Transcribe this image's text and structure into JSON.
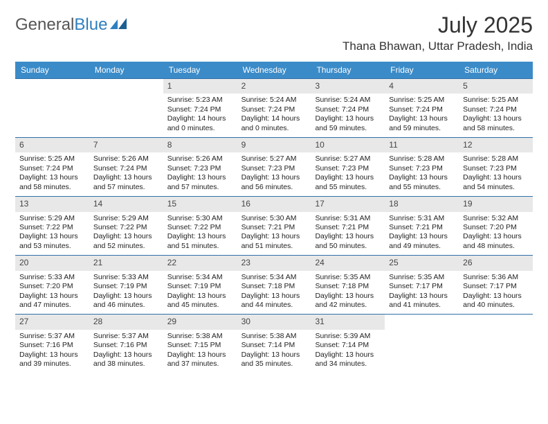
{
  "logo": {
    "part1": "General",
    "part2": "Blue"
  },
  "header": {
    "month_title": "July 2025",
    "location": "Thana Bhawan, Uttar Pradesh, India"
  },
  "colors": {
    "header_bg": "#3b8bc8",
    "week_border": "#2f6fa8",
    "daynum_bg": "#e8e8e8",
    "logo_blue": "#2f7fbf"
  },
  "day_names": [
    "Sunday",
    "Monday",
    "Tuesday",
    "Wednesday",
    "Thursday",
    "Friday",
    "Saturday"
  ],
  "weeks": [
    [
      {
        "n": "",
        "empty": true
      },
      {
        "n": "",
        "empty": true
      },
      {
        "n": "1",
        "sunrise": "Sunrise: 5:23 AM",
        "sunset": "Sunset: 7:24 PM",
        "daylight": "Daylight: 14 hours and 0 minutes."
      },
      {
        "n": "2",
        "sunrise": "Sunrise: 5:24 AM",
        "sunset": "Sunset: 7:24 PM",
        "daylight": "Daylight: 14 hours and 0 minutes."
      },
      {
        "n": "3",
        "sunrise": "Sunrise: 5:24 AM",
        "sunset": "Sunset: 7:24 PM",
        "daylight": "Daylight: 13 hours and 59 minutes."
      },
      {
        "n": "4",
        "sunrise": "Sunrise: 5:25 AM",
        "sunset": "Sunset: 7:24 PM",
        "daylight": "Daylight: 13 hours and 59 minutes."
      },
      {
        "n": "5",
        "sunrise": "Sunrise: 5:25 AM",
        "sunset": "Sunset: 7:24 PM",
        "daylight": "Daylight: 13 hours and 58 minutes."
      }
    ],
    [
      {
        "n": "6",
        "sunrise": "Sunrise: 5:25 AM",
        "sunset": "Sunset: 7:24 PM",
        "daylight": "Daylight: 13 hours and 58 minutes."
      },
      {
        "n": "7",
        "sunrise": "Sunrise: 5:26 AM",
        "sunset": "Sunset: 7:24 PM",
        "daylight": "Daylight: 13 hours and 57 minutes."
      },
      {
        "n": "8",
        "sunrise": "Sunrise: 5:26 AM",
        "sunset": "Sunset: 7:23 PM",
        "daylight": "Daylight: 13 hours and 57 minutes."
      },
      {
        "n": "9",
        "sunrise": "Sunrise: 5:27 AM",
        "sunset": "Sunset: 7:23 PM",
        "daylight": "Daylight: 13 hours and 56 minutes."
      },
      {
        "n": "10",
        "sunrise": "Sunrise: 5:27 AM",
        "sunset": "Sunset: 7:23 PM",
        "daylight": "Daylight: 13 hours and 55 minutes."
      },
      {
        "n": "11",
        "sunrise": "Sunrise: 5:28 AM",
        "sunset": "Sunset: 7:23 PM",
        "daylight": "Daylight: 13 hours and 55 minutes."
      },
      {
        "n": "12",
        "sunrise": "Sunrise: 5:28 AM",
        "sunset": "Sunset: 7:23 PM",
        "daylight": "Daylight: 13 hours and 54 minutes."
      }
    ],
    [
      {
        "n": "13",
        "sunrise": "Sunrise: 5:29 AM",
        "sunset": "Sunset: 7:22 PM",
        "daylight": "Daylight: 13 hours and 53 minutes."
      },
      {
        "n": "14",
        "sunrise": "Sunrise: 5:29 AM",
        "sunset": "Sunset: 7:22 PM",
        "daylight": "Daylight: 13 hours and 52 minutes."
      },
      {
        "n": "15",
        "sunrise": "Sunrise: 5:30 AM",
        "sunset": "Sunset: 7:22 PM",
        "daylight": "Daylight: 13 hours and 51 minutes."
      },
      {
        "n": "16",
        "sunrise": "Sunrise: 5:30 AM",
        "sunset": "Sunset: 7:21 PM",
        "daylight": "Daylight: 13 hours and 51 minutes."
      },
      {
        "n": "17",
        "sunrise": "Sunrise: 5:31 AM",
        "sunset": "Sunset: 7:21 PM",
        "daylight": "Daylight: 13 hours and 50 minutes."
      },
      {
        "n": "18",
        "sunrise": "Sunrise: 5:31 AM",
        "sunset": "Sunset: 7:21 PM",
        "daylight": "Daylight: 13 hours and 49 minutes."
      },
      {
        "n": "19",
        "sunrise": "Sunrise: 5:32 AM",
        "sunset": "Sunset: 7:20 PM",
        "daylight": "Daylight: 13 hours and 48 minutes."
      }
    ],
    [
      {
        "n": "20",
        "sunrise": "Sunrise: 5:33 AM",
        "sunset": "Sunset: 7:20 PM",
        "daylight": "Daylight: 13 hours and 47 minutes."
      },
      {
        "n": "21",
        "sunrise": "Sunrise: 5:33 AM",
        "sunset": "Sunset: 7:19 PM",
        "daylight": "Daylight: 13 hours and 46 minutes."
      },
      {
        "n": "22",
        "sunrise": "Sunrise: 5:34 AM",
        "sunset": "Sunset: 7:19 PM",
        "daylight": "Daylight: 13 hours and 45 minutes."
      },
      {
        "n": "23",
        "sunrise": "Sunrise: 5:34 AM",
        "sunset": "Sunset: 7:18 PM",
        "daylight": "Daylight: 13 hours and 44 minutes."
      },
      {
        "n": "24",
        "sunrise": "Sunrise: 5:35 AM",
        "sunset": "Sunset: 7:18 PM",
        "daylight": "Daylight: 13 hours and 42 minutes."
      },
      {
        "n": "25",
        "sunrise": "Sunrise: 5:35 AM",
        "sunset": "Sunset: 7:17 PM",
        "daylight": "Daylight: 13 hours and 41 minutes."
      },
      {
        "n": "26",
        "sunrise": "Sunrise: 5:36 AM",
        "sunset": "Sunset: 7:17 PM",
        "daylight": "Daylight: 13 hours and 40 minutes."
      }
    ],
    [
      {
        "n": "27",
        "sunrise": "Sunrise: 5:37 AM",
        "sunset": "Sunset: 7:16 PM",
        "daylight": "Daylight: 13 hours and 39 minutes."
      },
      {
        "n": "28",
        "sunrise": "Sunrise: 5:37 AM",
        "sunset": "Sunset: 7:16 PM",
        "daylight": "Daylight: 13 hours and 38 minutes."
      },
      {
        "n": "29",
        "sunrise": "Sunrise: 5:38 AM",
        "sunset": "Sunset: 7:15 PM",
        "daylight": "Daylight: 13 hours and 37 minutes."
      },
      {
        "n": "30",
        "sunrise": "Sunrise: 5:38 AM",
        "sunset": "Sunset: 7:14 PM",
        "daylight": "Daylight: 13 hours and 35 minutes."
      },
      {
        "n": "31",
        "sunrise": "Sunrise: 5:39 AM",
        "sunset": "Sunset: 7:14 PM",
        "daylight": "Daylight: 13 hours and 34 minutes."
      },
      {
        "n": "",
        "empty": true
      },
      {
        "n": "",
        "empty": true
      }
    ]
  ]
}
